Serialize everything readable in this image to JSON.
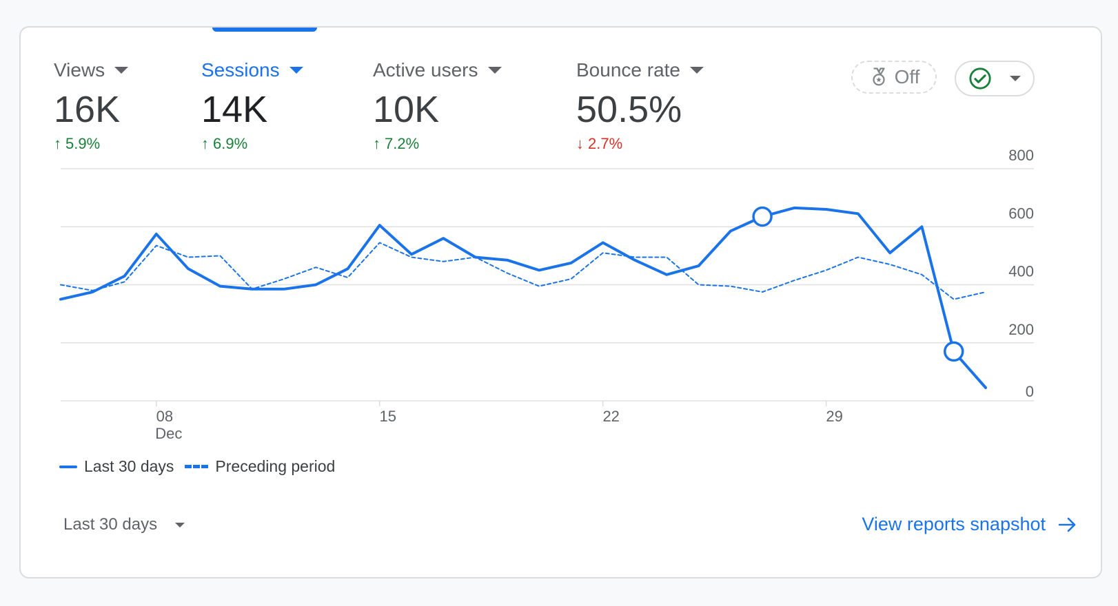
{
  "metrics": [
    {
      "name": "Views",
      "value": "16K",
      "change": "5.9%",
      "direction": "up"
    },
    {
      "name": "Sessions",
      "value": "14K",
      "change": "6.9%",
      "direction": "up"
    },
    {
      "name": "Active users",
      "value": "10K",
      "change": "7.2%",
      "direction": "up"
    },
    {
      "name": "Bounce rate",
      "value": "50.5%",
      "change": "2.7%",
      "direction": "down"
    }
  ],
  "controls": {
    "benchmark_label": "Off"
  },
  "legend": {
    "current": "Last 30 days",
    "previous": "Preceding period"
  },
  "footer": {
    "date_range": "Last 30 days",
    "view_link": "View reports snapshot"
  },
  "colors": {
    "accent": "#1a73e8",
    "positive": "#188038",
    "negative": "#d93025"
  },
  "chart_data": {
    "type": "line",
    "x_start": "Dec 4",
    "x_tick_labels": [
      {
        "day": 8,
        "label": "08",
        "sublabel": "Dec"
      },
      {
        "day": 15,
        "label": "15",
        "sublabel": ""
      },
      {
        "day": 22,
        "label": "22",
        "sublabel": ""
      },
      {
        "day": 29,
        "label": "29",
        "sublabel": ""
      }
    ],
    "y_ticks": [
      0,
      200,
      400,
      600,
      800
    ],
    "ylim": [
      0,
      800
    ],
    "grid": true,
    "series": [
      {
        "name": "Last 30 days",
        "style": "solid",
        "days": [
          5,
          6,
          7,
          8,
          9,
          10,
          11,
          12,
          13,
          14,
          15,
          16,
          17,
          18,
          19,
          20,
          21,
          22,
          23,
          24,
          25,
          26,
          27,
          28,
          29,
          30,
          31,
          32,
          33,
          34
        ],
        "values": [
          350,
          375,
          430,
          575,
          455,
          395,
          385,
          385,
          400,
          455,
          605,
          505,
          560,
          495,
          485,
          450,
          475,
          545,
          485,
          435,
          465,
          585,
          635,
          665,
          660,
          645,
          510,
          600,
          170,
          45
        ]
      },
      {
        "name": "Preceding period",
        "style": "dashed",
        "days": [
          5,
          6,
          7,
          8,
          9,
          10,
          11,
          12,
          13,
          14,
          15,
          16,
          17,
          18,
          19,
          20,
          21,
          22,
          23,
          24,
          25,
          26,
          27,
          28,
          29,
          30,
          31,
          32,
          33,
          34
        ],
        "values": [
          400,
          380,
          410,
          535,
          495,
          500,
          385,
          420,
          460,
          425,
          545,
          495,
          480,
          495,
          440,
          395,
          420,
          510,
          495,
          495,
          400,
          395,
          375,
          415,
          450,
          495,
          470,
          435,
          350,
          375
        ]
      }
    ],
    "highlight_points": [
      {
        "series": 0,
        "day": 27
      },
      {
        "series": 0,
        "day": 33
      }
    ]
  }
}
